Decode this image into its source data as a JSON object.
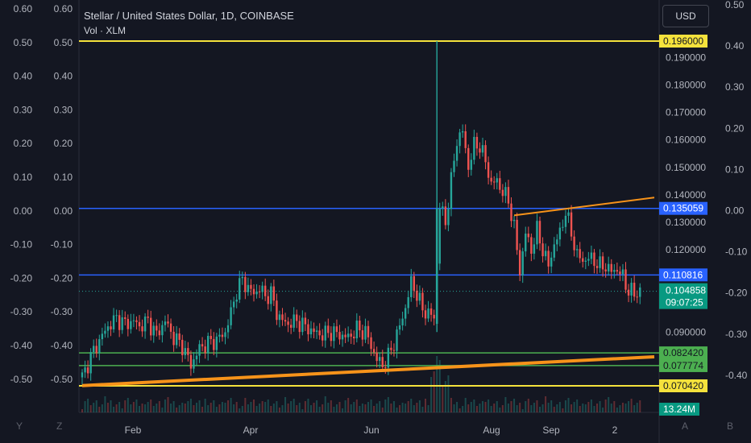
{
  "header": {
    "title": "Stellar / United States Dollar, 1D, COINBASE",
    "volume_label": "Vol · XLM",
    "currency_button": "USD"
  },
  "bottom_corner_labels": {
    "left_1": "Y",
    "left_2": "Z",
    "right_1": "A",
    "right_2": "B"
  },
  "colors": {
    "background": "#141722",
    "up": "#26a69a",
    "down": "#ef5350",
    "yellow_line": "#f5e23c",
    "blue_line": "#2962ff",
    "green_line": "#4caf50",
    "orange_trend": "#f7931a",
    "last_price_badge": "#089981"
  },
  "chart_data": {
    "type": "candlestick",
    "symbol": "Stellar / United States Dollar",
    "interval": "1D",
    "exchange": "COINBASE",
    "price_axis_ticks": [
      "0.190000",
      "0.180000",
      "0.170000",
      "0.160000",
      "0.150000",
      "0.140000",
      "0.130000",
      "0.120000",
      "0.090000"
    ],
    "left_axis_outer_ticks": [
      "0.60",
      "0.50",
      "0.40",
      "0.30",
      "0.20",
      "0.10",
      "0.00",
      "-0.10",
      "-0.20",
      "-0.30",
      "-0.40",
      "-0.50"
    ],
    "left_axis_inner_ticks": [
      "0.60",
      "0.50",
      "0.40",
      "0.30",
      "0.20",
      "0.10",
      "0.00",
      "-0.10",
      "-0.20",
      "-0.30",
      "-0.40",
      "-0.50"
    ],
    "right_axis_outer_ticks": [
      "0.50",
      "0.40",
      "0.30",
      "0.20",
      "0.10",
      "0.00",
      "-0.10",
      "-0.20",
      "-0.30",
      "-0.40"
    ],
    "x_ticks": [
      "Feb",
      "Apr",
      "Jun",
      "Aug",
      "Sep",
      "2"
    ],
    "horizontal_levels": [
      {
        "label": "0.196000",
        "price": 0.196,
        "kind": "yellow"
      },
      {
        "label": "0.135059",
        "price": 0.135059,
        "kind": "blue"
      },
      {
        "label": "0.110816",
        "price": 0.110816,
        "kind": "blue"
      },
      {
        "label": "0.082420",
        "price": 0.08242,
        "kind": "green"
      },
      {
        "label": "0.077774",
        "price": 0.077774,
        "kind": "green"
      },
      {
        "label": "0.070420",
        "price": 0.07042,
        "kind": "yellow"
      }
    ],
    "last_price": {
      "label": "0.104858",
      "price": 0.104858,
      "countdown": "09:07:25"
    },
    "volume_badge": "13.24M",
    "price_path": [
      [
        0,
        0.0735
      ],
      [
        3,
        0.081
      ],
      [
        6,
        0.087
      ],
      [
        9,
        0.092
      ],
      [
        12,
        0.095
      ],
      [
        15,
        0.093
      ],
      [
        18,
        0.094
      ],
      [
        20,
        0.092
      ],
      [
        23,
        0.094
      ],
      [
        26,
        0.089
      ],
      [
        29,
        0.094
      ],
      [
        32,
        0.088
      ],
      [
        35,
        0.085
      ],
      [
        38,
        0.078
      ],
      [
        41,
        0.084
      ],
      [
        44,
        0.086
      ],
      [
        47,
        0.087
      ],
      [
        50,
        0.09
      ],
      [
        52,
        0.097
      ],
      [
        54,
        0.105
      ],
      [
        56,
        0.109
      ],
      [
        58,
        0.106
      ],
      [
        60,
        0.104
      ],
      [
        62,
        0.106
      ],
      [
        64,
        0.103
      ],
      [
        66,
        0.104
      ],
      [
        68,
        0.097
      ],
      [
        70,
        0.094
      ],
      [
        72,
        0.093
      ],
      [
        75,
        0.094
      ],
      [
        78,
        0.092
      ],
      [
        81,
        0.09
      ],
      [
        84,
        0.089
      ],
      [
        87,
        0.09
      ],
      [
        90,
        0.089
      ],
      [
        93,
        0.088
      ],
      [
        96,
        0.091
      ],
      [
        99,
        0.09
      ],
      [
        101,
        0.085
      ],
      [
        103,
        0.08
      ],
      [
        105,
        0.078
      ],
      [
        107,
        0.081
      ],
      [
        109,
        0.086
      ],
      [
        111,
        0.092
      ],
      [
        113,
        0.099
      ],
      [
        115,
        0.108
      ],
      [
        117,
        0.104
      ],
      [
        119,
        0.098
      ],
      [
        121,
        0.097
      ],
      [
        123,
        0.095
      ],
      [
        125,
        0.136
      ],
      [
        127,
        0.13
      ],
      [
        129,
        0.145
      ],
      [
        131,
        0.16
      ],
      [
        133,
        0.163
      ],
      [
        135,
        0.15
      ],
      [
        137,
        0.158
      ],
      [
        139,
        0.158
      ],
      [
        141,
        0.152
      ],
      [
        143,
        0.144
      ],
      [
        145,
        0.145
      ],
      [
        147,
        0.141
      ],
      [
        149,
        0.138
      ],
      [
        151,
        0.128
      ],
      [
        153,
        0.112
      ],
      [
        155,
        0.126
      ],
      [
        157,
        0.12
      ],
      [
        159,
        0.127
      ],
      [
        161,
        0.12
      ],
      [
        163,
        0.114
      ],
      [
        165,
        0.122
      ],
      [
        167,
        0.126
      ],
      [
        169,
        0.134
      ],
      [
        171,
        0.126
      ],
      [
        173,
        0.118
      ],
      [
        175,
        0.116
      ],
      [
        177,
        0.117
      ],
      [
        179,
        0.116
      ],
      [
        181,
        0.114
      ],
      [
        183,
        0.114
      ],
      [
        185,
        0.112
      ],
      [
        187,
        0.113
      ],
      [
        189,
        0.11
      ],
      [
        191,
        0.105
      ],
      [
        193,
        0.104
      ],
      [
        195,
        0.1049
      ]
    ],
    "spike": {
      "x": 124,
      "high": 0.196,
      "low": 0.09
    },
    "trendlines": [
      {
        "name": "support",
        "from": [
          0,
          0.0705
        ],
        "to": [
          200,
          0.081
        ]
      },
      {
        "name": "resistance",
        "from": [
          151,
          0.1325
        ],
        "to": [
          200,
          0.139
        ]
      }
    ],
    "bars_count": 196
  }
}
